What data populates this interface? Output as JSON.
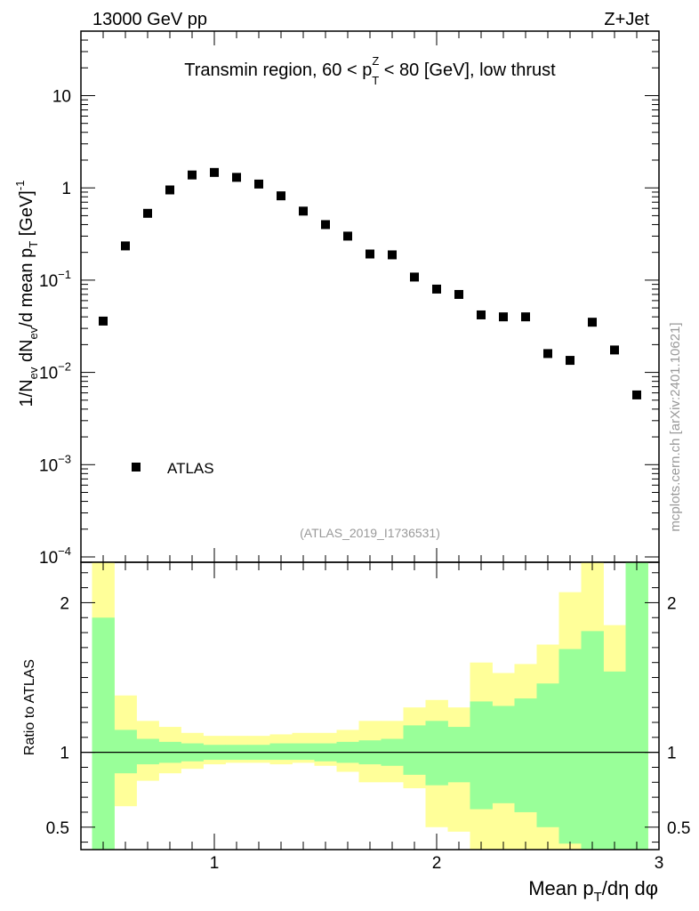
{
  "header": {
    "energy_label": "13000 GeV pp",
    "process_label": "Z+Jet"
  },
  "side_label": "mcplots.cern.ch [arXiv:2401.10621]",
  "chart_data": [
    {
      "type": "scatter",
      "panel": "main",
      "title": "Transmin region, 60 < p_T^Z < 80 [GeV], low thrust",
      "title_parts": {
        "pre": "Transmin region, 60 < p",
        "sup": "Z",
        "sub": "T",
        "post": " < 80 [GeV], low thrust"
      },
      "ylabel": "1/N_ev dN_ev/d mean p_T [GeV]^-1",
      "yscale": "log",
      "xlim": [
        0.4,
        3.0
      ],
      "ylim": [
        0.0001,
        50
      ],
      "y_ticks": [
        {
          "value": 0.0001,
          "base": "10",
          "exp": "−4"
        },
        {
          "value": 0.001,
          "base": "10",
          "exp": "−3"
        },
        {
          "value": 0.01,
          "base": "10",
          "exp": "−2"
        },
        {
          "value": 0.1,
          "base": "10",
          "exp": "−1"
        },
        {
          "value": 1,
          "base": "1",
          "exp": ""
        },
        {
          "value": 10,
          "base": "10",
          "exp": ""
        }
      ],
      "legend": {
        "position": "lower-left",
        "entries": [
          "ATLAS"
        ]
      },
      "annotation": "(ATLAS_2019_I1736531)",
      "series": [
        {
          "name": "ATLAS",
          "marker": "square",
          "color": "#000000",
          "x": [
            0.5,
            0.6,
            0.7,
            0.8,
            0.9,
            1.0,
            1.1,
            1.2,
            1.3,
            1.4,
            1.5,
            1.6,
            1.7,
            1.8,
            1.9,
            2.0,
            2.1,
            2.2,
            2.3,
            2.4,
            2.5,
            2.6,
            2.7,
            2.8,
            2.9
          ],
          "y": [
            0.036,
            0.235,
            0.53,
            0.95,
            1.38,
            1.47,
            1.3,
            1.1,
            0.82,
            0.56,
            0.4,
            0.3,
            0.192,
            0.188,
            0.108,
            0.08,
            0.07,
            0.042,
            0.04,
            0.04,
            0.016,
            0.0135,
            0.035,
            0.0175,
            0.0057
          ]
        }
      ]
    },
    {
      "type": "area",
      "panel": "ratio",
      "ylabel": "Ratio to ATLAS",
      "xlabel": "Mean p_T/dη dφ",
      "xlabel_parts": {
        "pre": "Mean p",
        "sub": "T",
        "post": "/dη dφ"
      },
      "xlim": [
        0.4,
        3.0
      ],
      "ylim": [
        0.35,
        2.27
      ],
      "x_ticks": [
        1,
        2,
        3
      ],
      "y_ticks": [
        0.5,
        1,
        2
      ],
      "reference_line": 1,
      "bin_edges": [
        0.45,
        0.55,
        0.65,
        0.75,
        0.85,
        0.95,
        1.05,
        1.15,
        1.25,
        1.35,
        1.45,
        1.55,
        1.65,
        1.75,
        1.85,
        1.95,
        2.05,
        2.15,
        2.25,
        2.35,
        2.45,
        2.55,
        2.65,
        2.75,
        2.85,
        2.95
      ],
      "bands": [
        {
          "name": "total uncertainty",
          "color": "#ffff99",
          "upper": [
            2.3,
            1.38,
            1.21,
            1.17,
            1.13,
            1.11,
            1.11,
            1.11,
            1.12,
            1.13,
            1.13,
            1.15,
            1.21,
            1.21,
            1.3,
            1.35,
            1.3,
            1.6,
            1.53,
            1.59,
            1.72,
            2.07,
            2.27,
            1.85,
            2.27
          ],
          "lower": [
            0.35,
            0.64,
            0.81,
            0.86,
            0.89,
            0.92,
            0.93,
            0.93,
            0.92,
            0.93,
            0.91,
            0.87,
            0.8,
            0.8,
            0.76,
            0.5,
            0.47,
            0.35,
            0.35,
            0.35,
            0.35,
            0.35,
            0.35,
            0.35,
            0.35
          ]
        },
        {
          "name": "statistical uncertainty",
          "color": "#99ff99",
          "upper": [
            1.9,
            1.15,
            1.09,
            1.07,
            1.06,
            1.05,
            1.05,
            1.05,
            1.06,
            1.06,
            1.06,
            1.07,
            1.08,
            1.09,
            1.18,
            1.21,
            1.17,
            1.34,
            1.31,
            1.36,
            1.46,
            1.69,
            1.81,
            1.54,
            2.27
          ],
          "lower": [
            0.35,
            0.86,
            0.92,
            0.93,
            0.94,
            0.95,
            0.95,
            0.95,
            0.95,
            0.95,
            0.94,
            0.93,
            0.92,
            0.91,
            0.85,
            0.78,
            0.8,
            0.62,
            0.66,
            0.6,
            0.5,
            0.39,
            0.35,
            0.35,
            0.35
          ]
        }
      ]
    }
  ]
}
